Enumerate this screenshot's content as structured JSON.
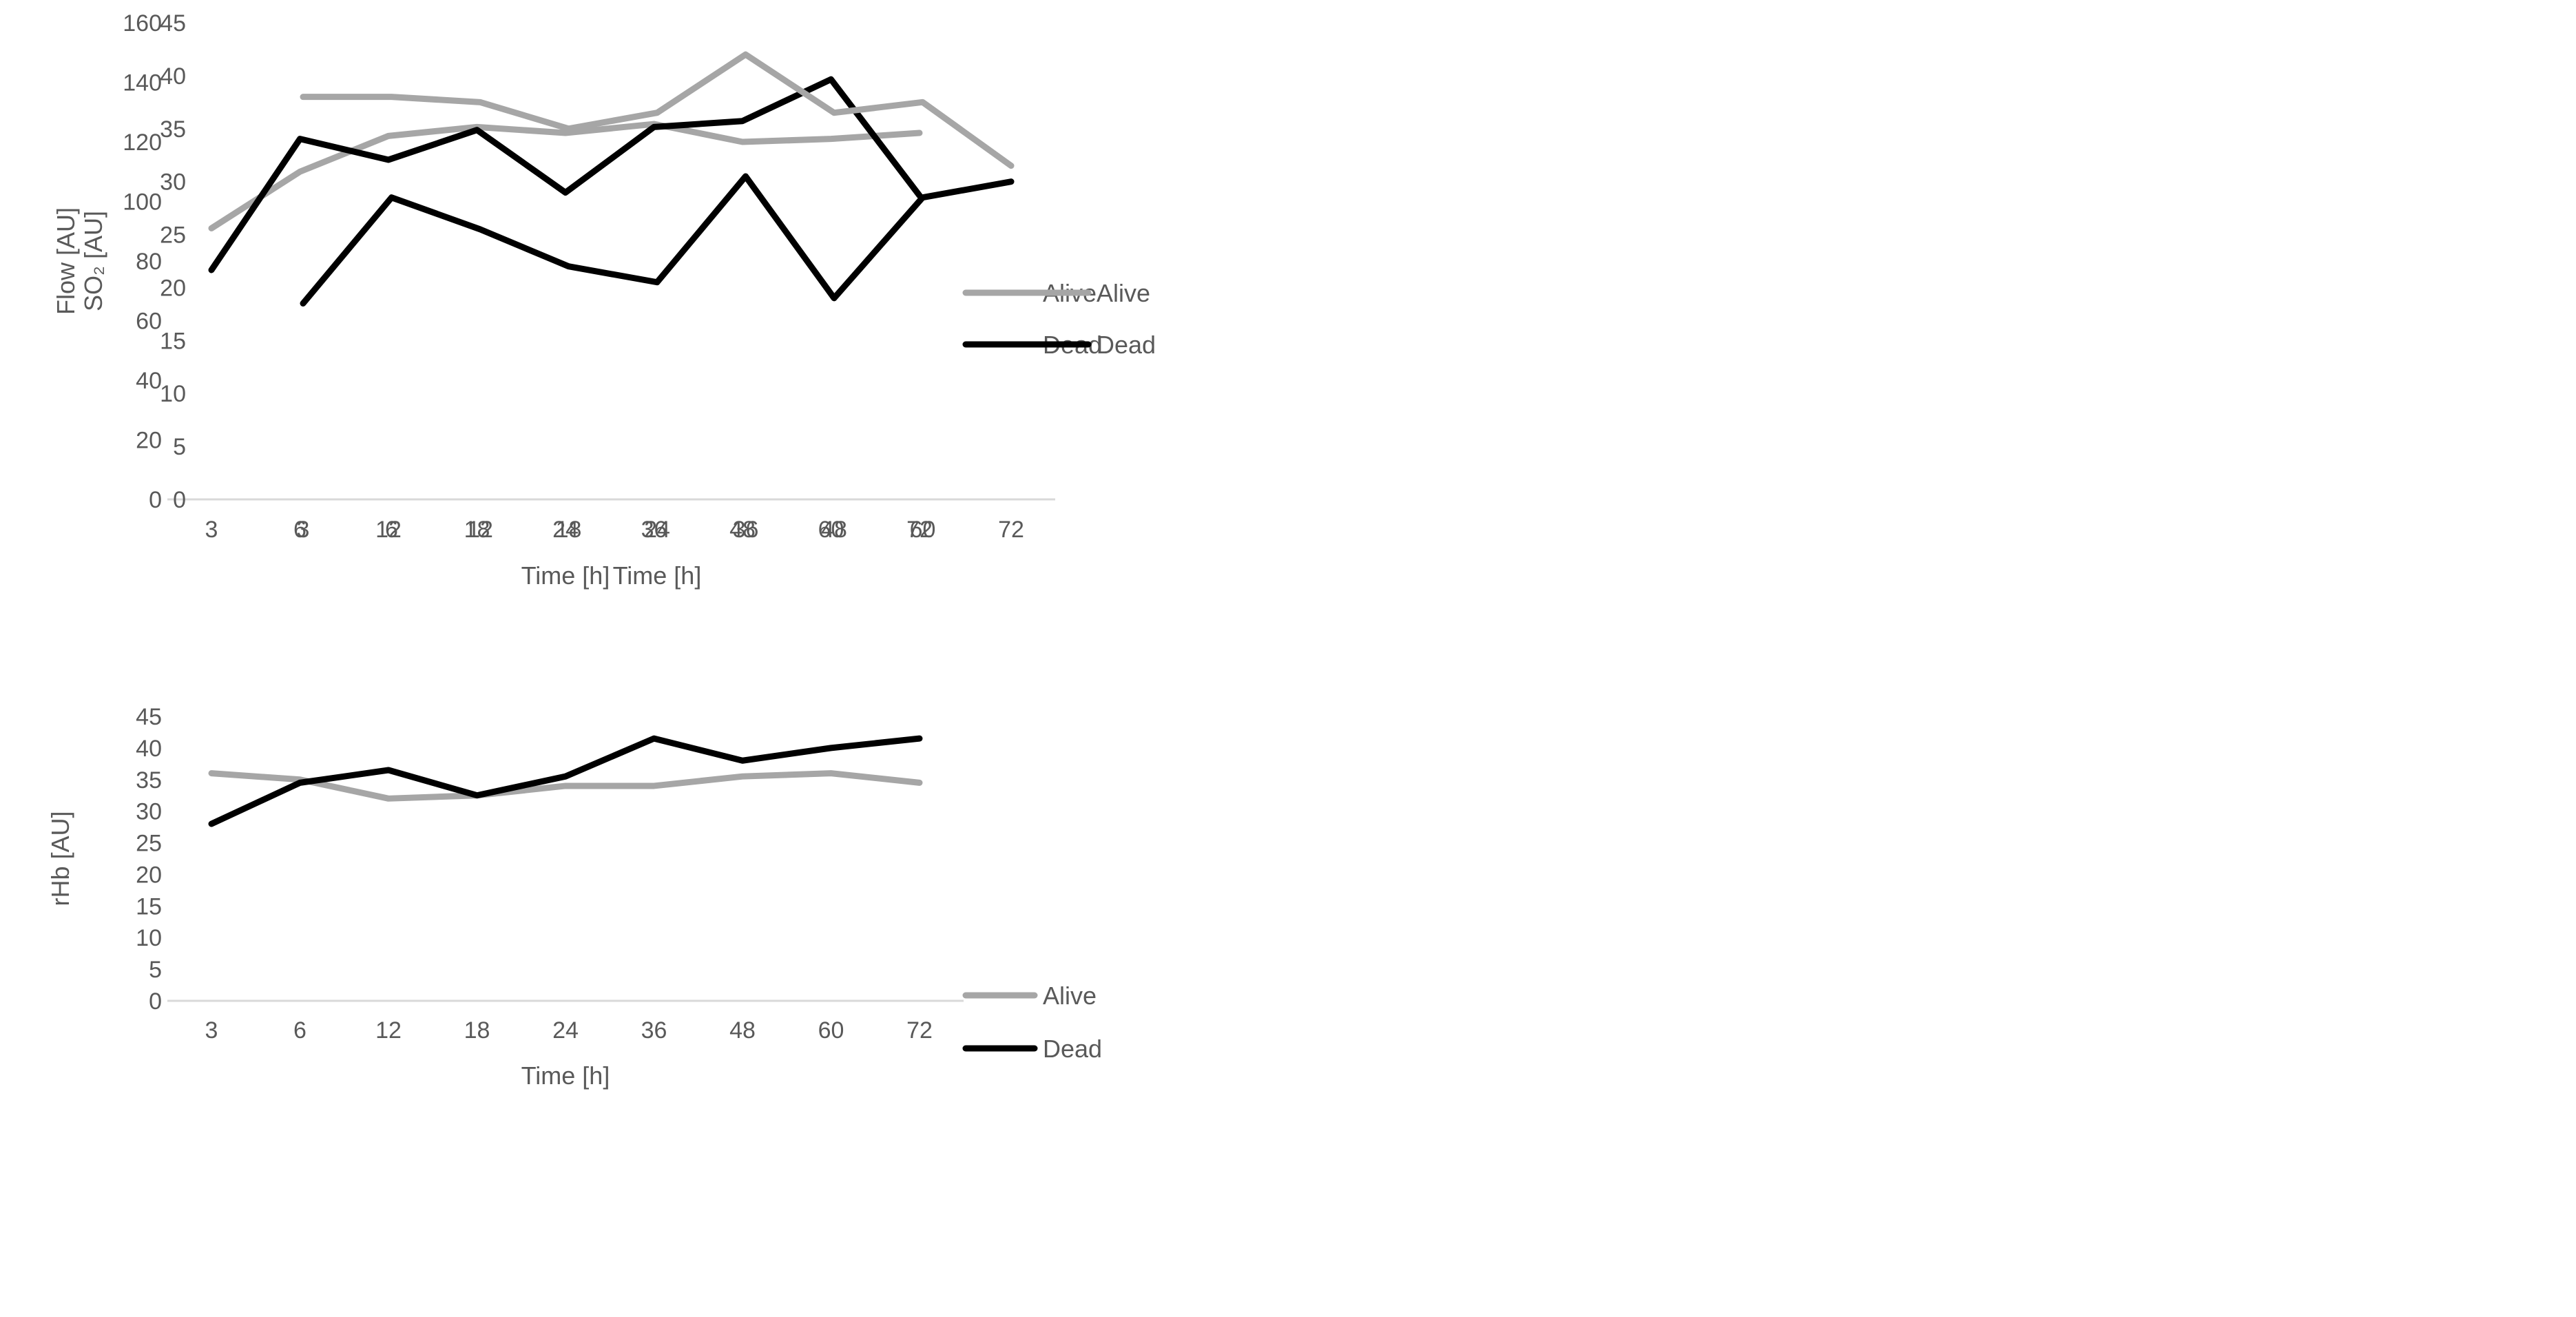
{
  "page": {
    "background": "#ffffff",
    "description": "Three Excel-style line charts comparing Alive vs Dead over time"
  },
  "colors": {
    "alive": "#a6a6a6",
    "dead": "#000000",
    "axis_line": "#d9d9d9",
    "tick_text": "#595959",
    "title_text": "#404040"
  },
  "legend": {
    "items": [
      {
        "label": "Alive",
        "color_key": "alive"
      },
      {
        "label": "Dead",
        "color_key": "dead"
      }
    ],
    "position": "right"
  },
  "chart_data": [
    {
      "type": "line",
      "id": "flow",
      "title": "",
      "xlabel": "Time [h]",
      "ylabel": "Flow [AU]",
      "categories": [
        "3",
        "6",
        "12",
        "18",
        "24",
        "36",
        "48",
        "60",
        "72"
      ],
      "y_ticks": [
        0,
        20,
        40,
        60,
        80,
        100,
        120,
        140,
        160
      ],
      "ylim": [
        0,
        160
      ],
      "grid": false,
      "legend_position": "right",
      "series": [
        {
          "name": "Alive",
          "color_key": "alive",
          "values": [
            91,
            110,
            122,
            125,
            123,
            126,
            120,
            121,
            123
          ]
        },
        {
          "name": "Dead",
          "color_key": "dead",
          "values": [
            77,
            121,
            114,
            124,
            103,
            125,
            127,
            141,
            102
          ]
        }
      ]
    },
    {
      "type": "line",
      "id": "so2",
      "title": "",
      "xlabel": "Time [h]",
      "ylabel": "SO₂ [AU]",
      "categories": [
        "3",
        "6",
        "12",
        "18",
        "24",
        "36",
        "48",
        "60",
        "72"
      ],
      "y_ticks": [
        0,
        5,
        10,
        15,
        20,
        25,
        30,
        35,
        40,
        45
      ],
      "ylim": [
        0,
        45
      ],
      "grid": false,
      "legend_position": "right",
      "series": [
        {
          "name": "Alive",
          "color_key": "alive",
          "values": [
            38,
            38,
            37.5,
            35,
            36.5,
            42,
            36.5,
            37.5,
            31.5
          ]
        },
        {
          "name": "Dead",
          "color_key": "dead",
          "values": [
            18.5,
            28.5,
            25.5,
            22,
            20.5,
            30.5,
            19,
            28.5,
            30
          ]
        }
      ]
    },
    {
      "type": "line",
      "id": "rhb",
      "title": "",
      "xlabel": "Time [h]",
      "ylabel": "rHb [AU]",
      "categories": [
        "3",
        "6",
        "12",
        "18",
        "24",
        "36",
        "48",
        "60",
        "72"
      ],
      "y_ticks": [
        0,
        5,
        10,
        15,
        20,
        25,
        30,
        35,
        40,
        45
      ],
      "ylim": [
        0,
        45
      ],
      "grid": false,
      "legend_position": "right",
      "series": [
        {
          "name": "Alive",
          "color_key": "alive",
          "values": [
            36,
            35,
            32,
            32.5,
            34,
            34,
            35.5,
            36,
            34.5
          ]
        },
        {
          "name": "Dead",
          "color_key": "dead",
          "values": [
            28,
            34.5,
            36.5,
            32.5,
            35.5,
            41.5,
            38,
            40,
            41.5
          ]
        }
      ]
    }
  ]
}
